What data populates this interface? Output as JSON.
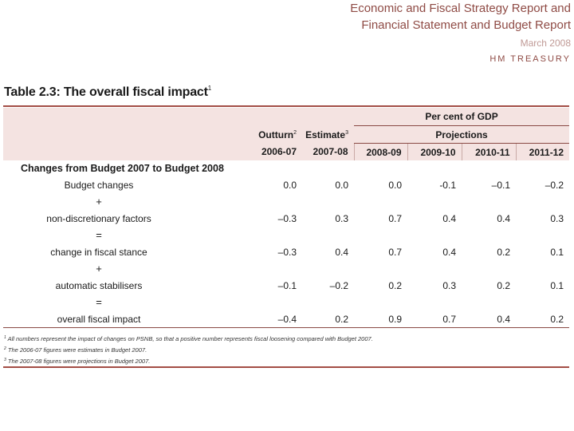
{
  "header": {
    "line1": "Economic and Fiscal Strategy Report and",
    "line2": "Financial Statement and Budget Report",
    "date": "March 2008",
    "brand": "HM TREASURY"
  },
  "table": {
    "title": "Table 2.3: The overall fiscal impact",
    "title_note": "1",
    "unit": "Per cent of GDP",
    "outturn": "Outturn",
    "outturn_note": "2",
    "estimate": "Estimate",
    "estimate_note": "3",
    "projections": "Projections",
    "years": [
      "2006-07",
      "2007-08",
      "2008-09",
      "2009-10",
      "2010-11",
      "2011-12"
    ],
    "section": "Changes from Budget 2007 to Budget 2008",
    "rows": [
      {
        "label": "Budget changes",
        "values": [
          "0.0",
          "0.0",
          "0.0",
          "-0.1",
          "–0.1",
          "–0.2"
        ]
      },
      {
        "op": "+"
      },
      {
        "label": "non-discretionary factors",
        "values": [
          "–0.3",
          "0.3",
          "0.7",
          "0.4",
          "0.4",
          "0.3"
        ]
      },
      {
        "op": "="
      },
      {
        "label": "change in fiscal stance",
        "values": [
          "–0.3",
          "0.4",
          "0.7",
          "0.4",
          "0.2",
          "0.1"
        ]
      },
      {
        "op": "+"
      },
      {
        "label": "automatic stabilisers",
        "values": [
          "–0.1",
          "–0.2",
          "0.2",
          "0.3",
          "0.2",
          "0.1"
        ]
      },
      {
        "op": "="
      },
      {
        "label": "overall fiscal impact",
        "values": [
          "–0.4",
          "0.2",
          "0.9",
          "0.7",
          "0.4",
          "0.2"
        ]
      }
    ]
  },
  "footnotes": [
    {
      "mark": "1",
      "text": "All numbers represent the impact of changes on PSNB, so that a positive number represents fiscal loosening compared with Budget 2007."
    },
    {
      "mark": "2",
      "text": "The 2006-07 figures were estimates in Budget 2007."
    },
    {
      "mark": "3",
      "text": "The 2007-08 figures were projections in Budget 2007."
    }
  ]
}
